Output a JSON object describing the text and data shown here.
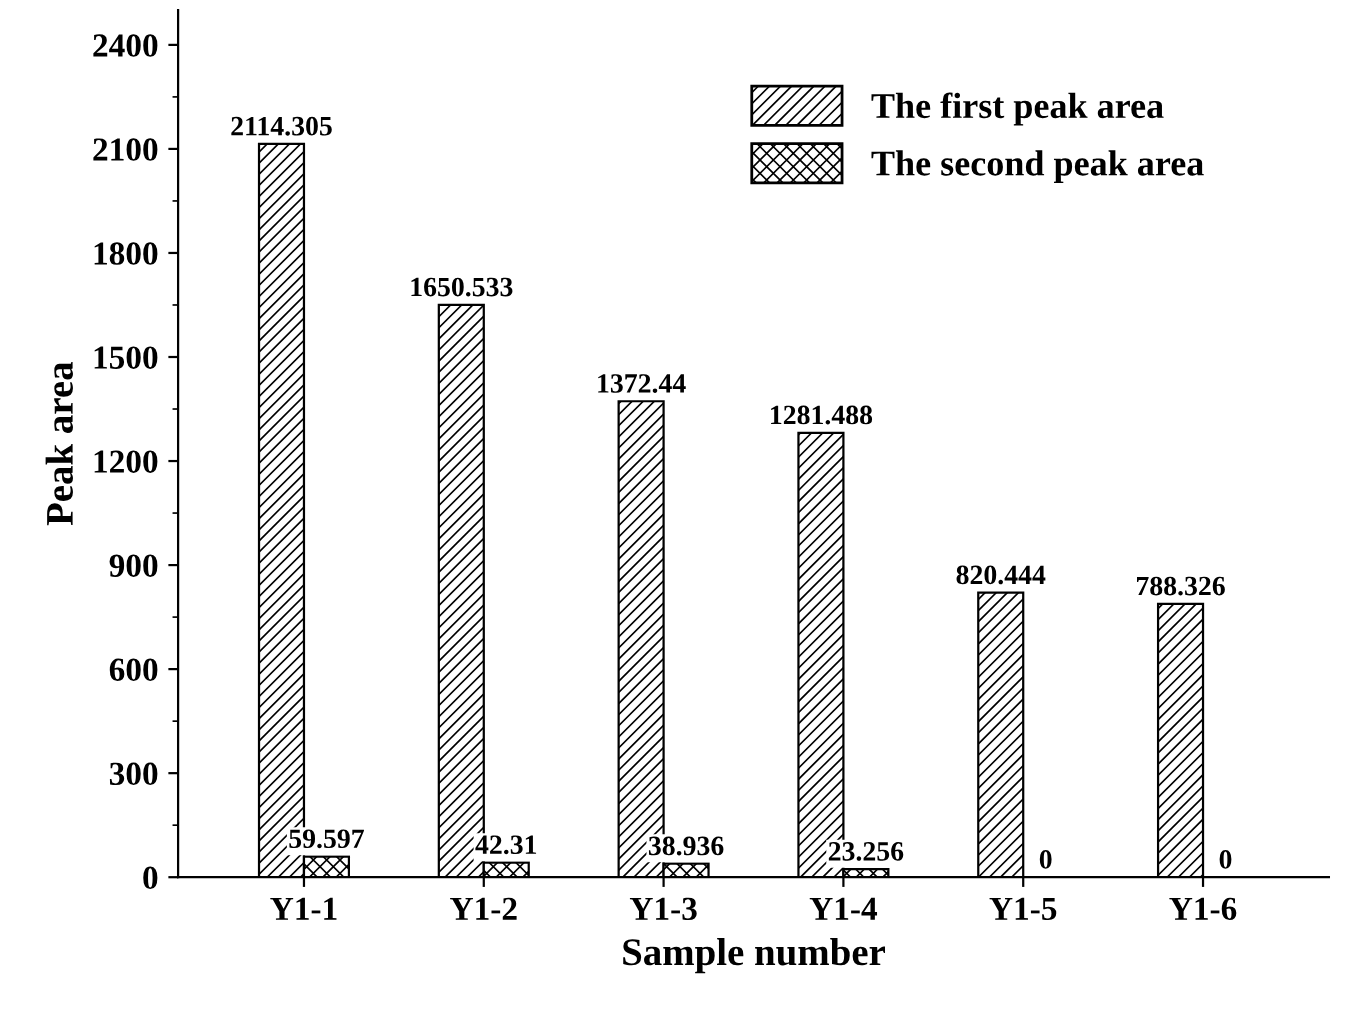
{
  "chart_data": {
    "type": "bar",
    "xlabel": "Sample number",
    "ylabel": "Peak area",
    "categories": [
      "Y1-1",
      "Y1-2",
      "Y1-3",
      "Y1-4",
      "Y1-5",
      "Y1-6"
    ],
    "series": [
      {
        "name": "The first peak area",
        "color": "#000000",
        "values": [
          2114.305,
          1650.533,
          1372.44,
          1281.488,
          820.444,
          788.326
        ]
      },
      {
        "name": "The second peak area",
        "color": "#000000",
        "values": [
          59.597,
          42.31,
          38.936,
          23.256,
          0,
          0
        ]
      }
    ],
    "ylim": [
      0,
      2500
    ],
    "yticks": [
      0,
      300,
      600,
      900,
      1200,
      1500,
      1800,
      2100,
      2400
    ],
    "data_labels": true,
    "legend": "top right",
    "grid": false
  }
}
